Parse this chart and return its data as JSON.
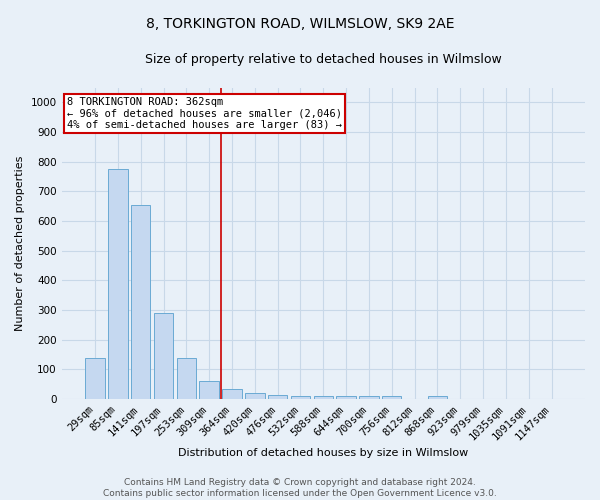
{
  "title": "8, TORKINGTON ROAD, WILMSLOW, SK9 2AE",
  "subtitle": "Size of property relative to detached houses in Wilmslow",
  "xlabel": "Distribution of detached houses by size in Wilmslow",
  "ylabel": "Number of detached properties",
  "bar_color": "#c5d8f0",
  "bar_edge_color": "#6aaad4",
  "categories": [
    "29sqm",
    "85sqm",
    "141sqm",
    "197sqm",
    "253sqm",
    "309sqm",
    "364sqm",
    "420sqm",
    "476sqm",
    "532sqm",
    "588sqm",
    "644sqm",
    "700sqm",
    "756sqm",
    "812sqm",
    "868sqm",
    "923sqm",
    "979sqm",
    "1035sqm",
    "1091sqm",
    "1147sqm"
  ],
  "values": [
    140,
    775,
    655,
    290,
    140,
    60,
    35,
    20,
    15,
    10,
    10,
    10,
    10,
    10,
    0,
    10,
    0,
    0,
    0,
    0,
    0
  ],
  "ylim": [
    0,
    1050
  ],
  "yticks": [
    0,
    100,
    200,
    300,
    400,
    500,
    600,
    700,
    800,
    900,
    1000
  ],
  "vline_x": 5.5,
  "vline_color": "#cc0000",
  "annotation_text": "8 TORKINGTON ROAD: 362sqm\n← 96% of detached houses are smaller (2,046)\n4% of semi-detached houses are larger (83) →",
  "annotation_box_color": "#cc0000",
  "footer_line1": "Contains HM Land Registry data © Crown copyright and database right 2024.",
  "footer_line2": "Contains public sector information licensed under the Open Government Licence v3.0.",
  "background_color": "#e8f0f8",
  "plot_bg_color": "#e8f0f8",
  "grid_color": "#c8d8e8",
  "title_fontsize": 10,
  "subtitle_fontsize": 9,
  "axis_label_fontsize": 8,
  "tick_fontsize": 7.5,
  "annotation_fontsize": 7.5,
  "footer_fontsize": 6.5
}
